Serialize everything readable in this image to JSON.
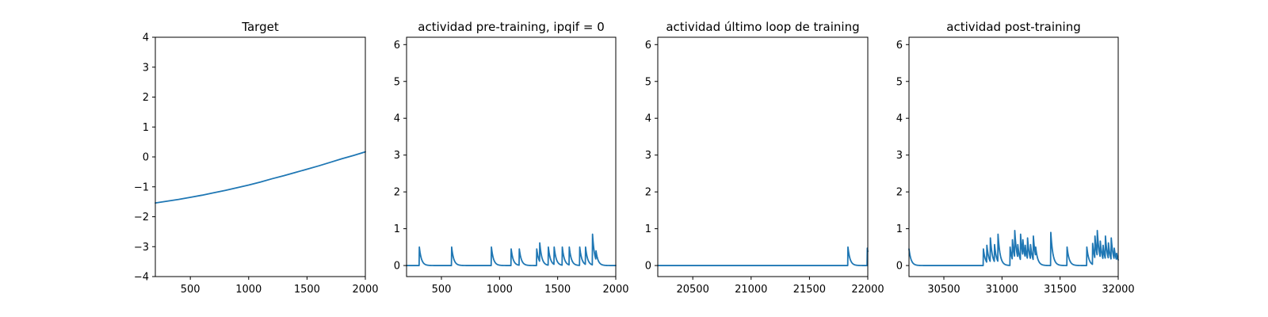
{
  "chart_data": [
    {
      "type": "line",
      "title": "Target",
      "xlim": [
        200,
        2000
      ],
      "ylim": [
        -4,
        4
      ],
      "xticks": [
        500,
        1000,
        1500,
        2000
      ],
      "yticks": [
        -4,
        -3,
        -2,
        -1,
        0,
        1,
        2,
        3,
        4
      ],
      "series": [
        {
          "color": "#1f77b4",
          "x": [
            200,
            300,
            400,
            500,
            600,
            700,
            800,
            900,
            1000,
            1100,
            1200,
            1300,
            1400,
            1500,
            1600,
            1700,
            1800,
            1900,
            2000
          ],
          "y": [
            -1.54,
            -1.48,
            -1.42,
            -1.35,
            -1.28,
            -1.2,
            -1.12,
            -1.03,
            -0.94,
            -0.84,
            -0.73,
            -0.63,
            -0.52,
            -0.41,
            -0.3,
            -0.18,
            -0.06,
            0.05,
            0.17
          ]
        }
      ]
    },
    {
      "type": "line",
      "title": "actividad pre-training, ipqif = 0",
      "xlim": [
        200,
        2000
      ],
      "ylim": [
        -0.3,
        6.2
      ],
      "xticks": [
        500,
        1000,
        1500,
        2000
      ],
      "yticks": [
        0,
        1,
        2,
        3,
        4,
        5,
        6
      ],
      "series": [
        {
          "color": "#1f77b4",
          "spikes": [
            {
              "t": 310,
              "h": 0.5
            },
            {
              "t": 588,
              "h": 0.5
            },
            {
              "t": 930,
              "h": 0.5
            },
            {
              "t": 1100,
              "h": 0.45
            },
            {
              "t": 1170,
              "h": 0.45
            },
            {
              "t": 1320,
              "h": 0.45
            },
            {
              "t": 1345,
              "h": 0.65
            },
            {
              "t": 1420,
              "h": 0.5
            },
            {
              "t": 1470,
              "h": 0.5
            },
            {
              "t": 1540,
              "h": 0.5
            },
            {
              "t": 1600,
              "h": 0.5
            },
            {
              "t": 1690,
              "h": 0.5
            },
            {
              "t": 1740,
              "h": 0.5
            },
            {
              "t": 1800,
              "h": 0.85
            },
            {
              "t": 1830,
              "h": 0.4
            }
          ]
        }
      ]
    },
    {
      "type": "line",
      "title": "actividad último loop de training",
      "xlim": [
        20200,
        22000
      ],
      "ylim": [
        -0.3,
        6.2
      ],
      "xticks": [
        20500,
        21000,
        21500,
        22000
      ],
      "yticks": [
        0,
        1,
        2,
        3,
        4,
        5,
        6
      ],
      "series": [
        {
          "color": "#1f77b4",
          "spikes": [
            {
              "t": 21830,
              "h": 0.5
            },
            {
              "t": 21995,
              "h": 0.5
            }
          ]
        }
      ]
    },
    {
      "type": "line",
      "title": "actividad post-training",
      "xlim": [
        30200,
        32000
      ],
      "ylim": [
        -0.3,
        6.2
      ],
      "xticks": [
        30500,
        31000,
        31500,
        32000
      ],
      "yticks": [
        0,
        1,
        2,
        3,
        4,
        5,
        6
      ],
      "series": [
        {
          "color": "#1f77b4",
          "initial": 0.45,
          "spikes": [
            {
              "t": 30840,
              "h": 0.45
            },
            {
              "t": 30870,
              "h": 0.55
            },
            {
              "t": 30900,
              "h": 0.75
            },
            {
              "t": 30935,
              "h": 0.6
            },
            {
              "t": 30965,
              "h": 0.9
            },
            {
              "t": 31070,
              "h": 0.5
            },
            {
              "t": 31090,
              "h": 0.7
            },
            {
              "t": 31110,
              "h": 0.95
            },
            {
              "t": 31135,
              "h": 0.6
            },
            {
              "t": 31160,
              "h": 0.85
            },
            {
              "t": 31180,
              "h": 0.7
            },
            {
              "t": 31200,
              "h": 0.55
            },
            {
              "t": 31220,
              "h": 0.75
            },
            {
              "t": 31245,
              "h": 0.6
            },
            {
              "t": 31270,
              "h": 0.8
            },
            {
              "t": 31290,
              "h": 0.5
            },
            {
              "t": 31420,
              "h": 0.9
            },
            {
              "t": 31560,
              "h": 0.5
            },
            {
              "t": 31730,
              "h": 0.5
            },
            {
              "t": 31780,
              "h": 0.6
            },
            {
              "t": 31800,
              "h": 0.8
            },
            {
              "t": 31820,
              "h": 0.95
            },
            {
              "t": 31845,
              "h": 0.7
            },
            {
              "t": 31870,
              "h": 0.55
            },
            {
              "t": 31890,
              "h": 0.8
            },
            {
              "t": 31915,
              "h": 0.65
            },
            {
              "t": 31940,
              "h": 0.75
            },
            {
              "t": 31965,
              "h": 0.5
            },
            {
              "t": 31985,
              "h": 0.35
            }
          ]
        }
      ]
    }
  ]
}
